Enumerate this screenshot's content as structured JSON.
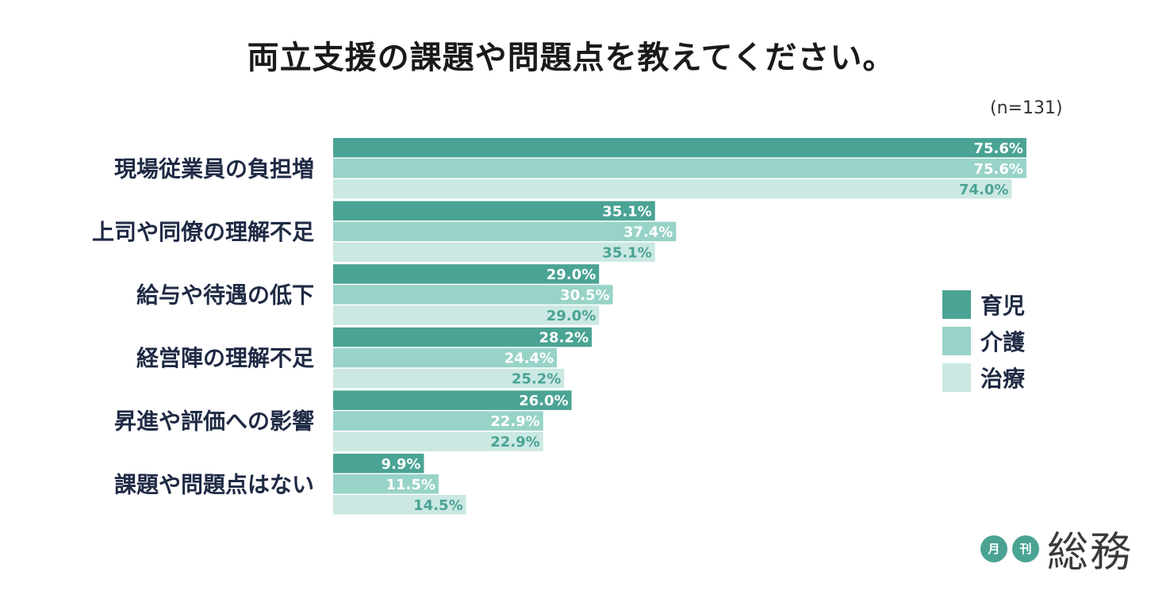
{
  "title": "両立支援の課題や問題点を教えてください。",
  "sample_size": "(n=131)",
  "logo": {
    "badge1": "月",
    "badge2": "刊",
    "word": "総務"
  },
  "chart_data": {
    "type": "bar",
    "orientation": "horizontal",
    "title": "両立支援の課題や問題点を教えてください。",
    "xlabel": "",
    "ylabel": "",
    "xlim": [
      0,
      100
    ],
    "categories": [
      "現場従業員の負担増",
      "上司や同僚の理解不足",
      "給与や待遇の低下",
      "経営陣の理解不足",
      "昇進や評価への影響",
      "課題や問題点はない"
    ],
    "series": [
      {
        "name": "育児",
        "color": "#4aa394",
        "label_color": "#ffffff",
        "values": [
          75.6,
          35.1,
          29.0,
          28.2,
          26.0,
          9.9
        ]
      },
      {
        "name": "介護",
        "color": "#98d3c8",
        "label_color": "#ffffff",
        "values": [
          75.6,
          37.4,
          30.5,
          24.4,
          22.9,
          11.5
        ]
      },
      {
        "name": "治療",
        "color": "#cbe8e3",
        "label_color": "#4aa394",
        "values": [
          74.0,
          35.1,
          29.0,
          25.2,
          22.9,
          14.5
        ]
      }
    ],
    "legend_position": "right"
  }
}
